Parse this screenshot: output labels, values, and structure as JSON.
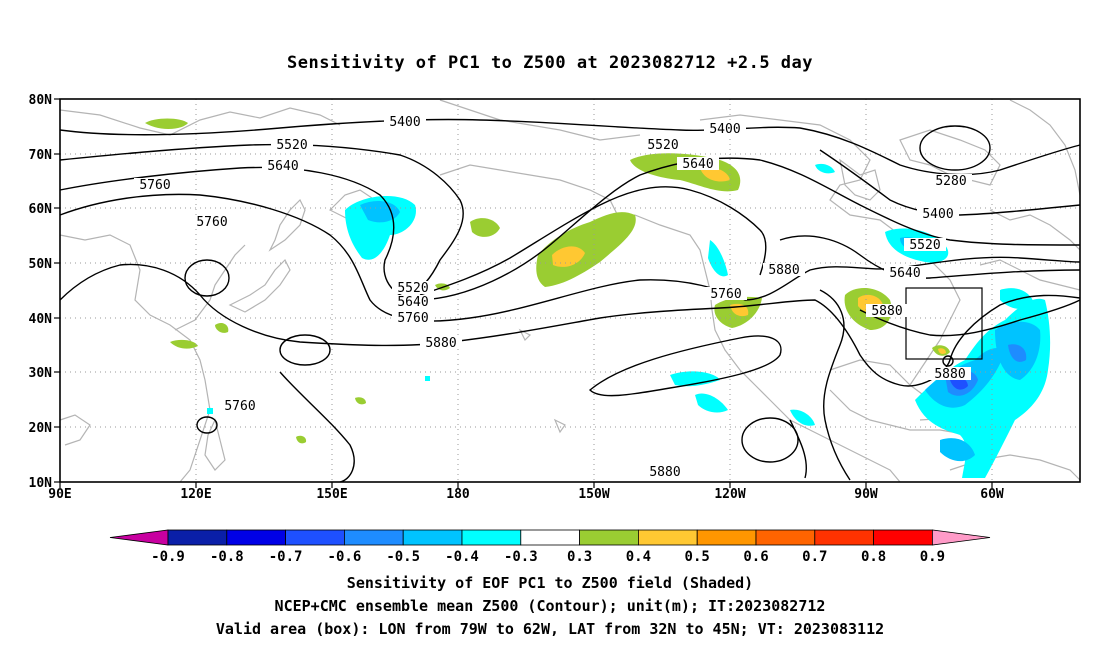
{
  "title": "Sensitivity of PC1 to Z500 at 2023082712 +2.5 day",
  "map": {
    "lat_labels": [
      "80N",
      "70N",
      "60N",
      "50N",
      "40N",
      "30N",
      "20N",
      "10N"
    ],
    "lon_labels": [
      "90E",
      "120E",
      "150E",
      "180",
      "150W",
      "120W",
      "90W",
      "60W"
    ],
    "contour_labels": [
      "5400",
      "5400",
      "5520",
      "5520",
      "5640",
      "5640",
      "5760",
      "5760",
      "5520",
      "5640",
      "5760",
      "5880",
      "5880",
      "5760",
      "5880",
      "5280",
      "5400",
      "5520",
      "5640",
      "5760",
      "5880",
      "5880"
    ],
    "valid_box": {
      "lon_west": "79W",
      "lon_east": "62W",
      "lat_south": "32N",
      "lat_north": "45N"
    }
  },
  "colorbar": {
    "labels": [
      "-0.9",
      "-0.8",
      "-0.7",
      "-0.6",
      "-0.5",
      "-0.4",
      "-0.3",
      "0.3",
      "0.4",
      "0.5",
      "0.6",
      "0.7",
      "0.8",
      "0.9"
    ],
    "colors": [
      "#c800a0",
      "#0a1fa8",
      "#0000e6",
      "#1e50ff",
      "#1e8cff",
      "#00c3ff",
      "#00ffff",
      "#ffffff",
      "#9acd32",
      "#ffc832",
      "#ff9600",
      "#ff6400",
      "#ff3200",
      "#ff0000",
      "#ff9bc8"
    ]
  },
  "footer": {
    "line1": "Sensitivity of EOF PC1 to Z500 field (Shaded)",
    "line2": "NCEP+CMC ensemble mean Z500 (Contour); unit(m); IT:2023082712",
    "line3": "Valid area (box): LON from 79W to 62W, LAT from 32N to 45N; VT: 2023083112"
  }
}
